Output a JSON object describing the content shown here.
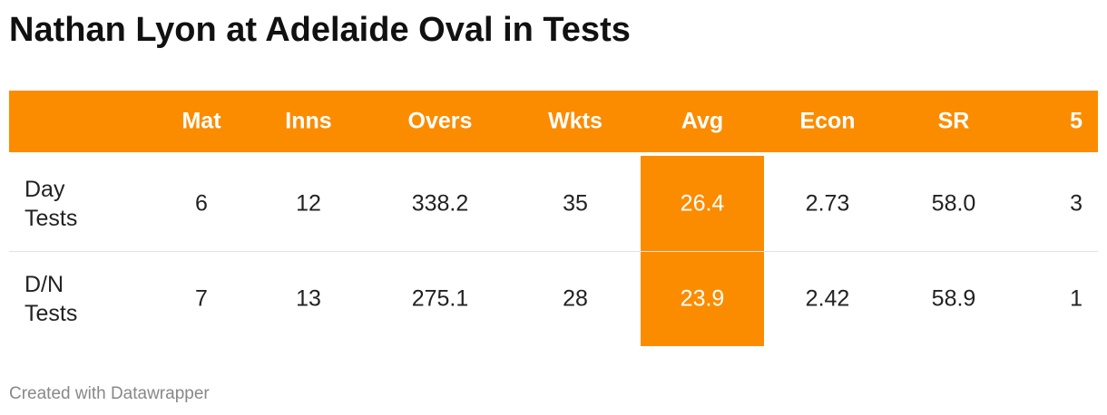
{
  "title": "Nathan Lyon at Adelaide Oval in Tests",
  "table": {
    "header": [
      "Mat",
      "Inns",
      "Overs",
      "Wkts",
      "Avg",
      "Econ",
      "SR",
      "5"
    ],
    "rows": [
      {
        "label": "Day Tests",
        "cells": [
          "6",
          "12",
          "338.2",
          "35",
          "26.4",
          "2.73",
          "58.0",
          "3"
        ]
      },
      {
        "label": "D/N Tests",
        "cells": [
          "7",
          "13",
          "275.1",
          "28",
          "23.9",
          "2.42",
          "58.9",
          "1"
        ]
      }
    ]
  },
  "footer": "Created with Datawrapper"
}
